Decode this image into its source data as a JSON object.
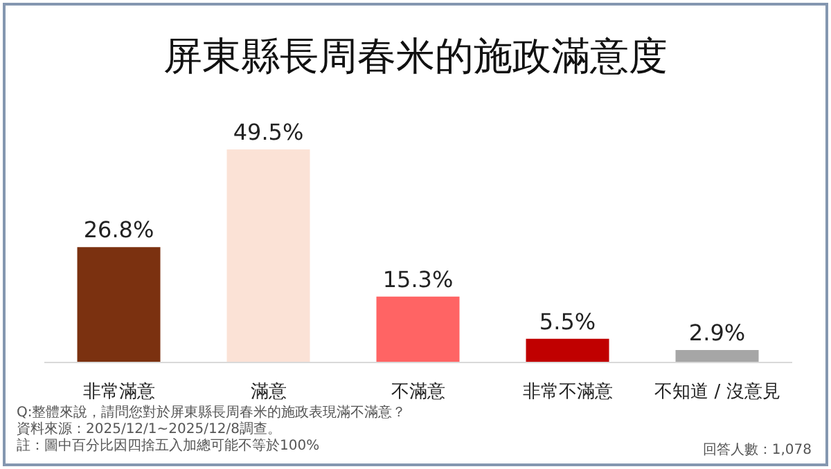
{
  "chart_data": {
    "type": "bar",
    "title": "屏東縣長周春米的施政滿意度",
    "categories": [
      "非常滿意",
      "滿意",
      "不滿意",
      "非常不滿意",
      "不知道 / 沒意見"
    ],
    "values": [
      26.8,
      49.5,
      15.3,
      5.5,
      2.9
    ],
    "colors": [
      "#7b3110",
      "#fbe2d6",
      "#ff6464",
      "#c00000",
      "#a6a6a6"
    ],
    "value_labels": [
      "26.8%",
      "49.5%",
      "15.3%",
      "5.5%",
      "2.9%"
    ],
    "grid": false,
    "legend": false,
    "annotations": [
      "Q:整體來說，請問您對於屏東縣長周春米的施政表現滿不滿意？",
      "資料來源：2025/12/1~2025/12/8調查。",
      "註：圖中百分比因四捨五入加總可能不等於100%",
      "回答人數：1,078"
    ]
  }
}
